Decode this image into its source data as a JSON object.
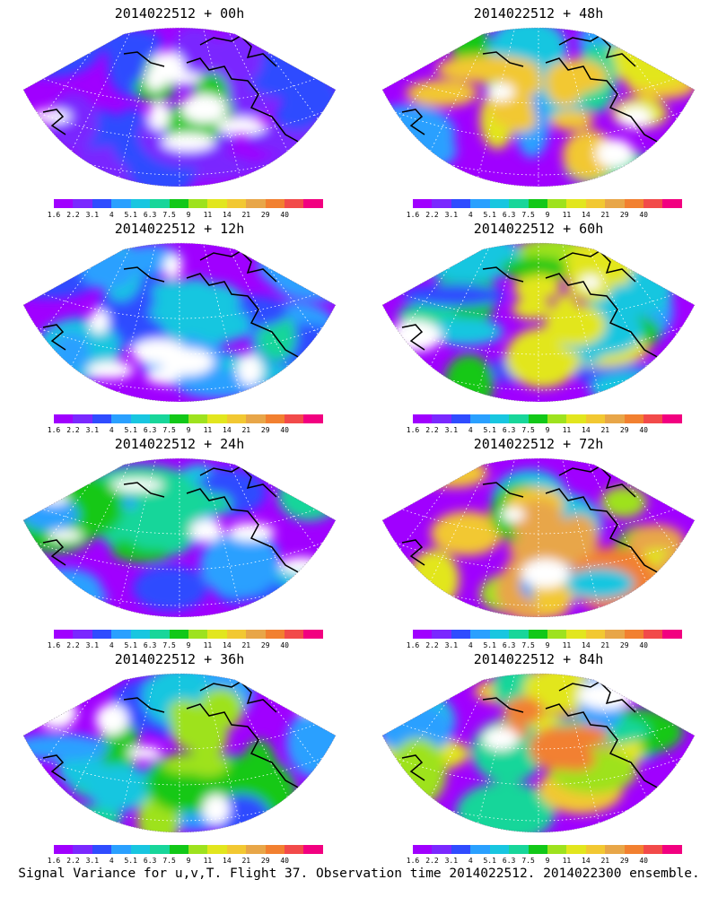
{
  "colorbar": {
    "ticks": [
      "1.6",
      "2.2",
      "3.1",
      "4",
      "5.1",
      "6.3",
      "7.5",
      "9",
      "11",
      "14",
      "21",
      "29",
      "40"
    ],
    "colors": [
      "#a000ff",
      "#7a28ff",
      "#2f4cff",
      "#2aa0ff",
      "#18c6e0",
      "#18d69a",
      "#12c818",
      "#9ee21e",
      "#e2e61e",
      "#f2c832",
      "#e8a648",
      "#f28030",
      "#f24a4a",
      "#f20080"
    ]
  },
  "panels": [
    {
      "title": "2014022512 + 00h",
      "intensity": 0.15,
      "hot": 0.9
    },
    {
      "title": "2014022512 + 48h",
      "intensity": 0.72,
      "hot": 0.2
    },
    {
      "title": "2014022512 + 12h",
      "intensity": 0.35,
      "hot": 0.1
    },
    {
      "title": "2014022512 + 60h",
      "intensity": 0.68,
      "hot": 0.15
    },
    {
      "title": "2014022512 + 24h",
      "intensity": 0.45,
      "hot": 0.1
    },
    {
      "title": "2014022512 + 72h",
      "intensity": 0.78,
      "hot": 0.2
    },
    {
      "title": "2014022512 + 36h",
      "intensity": 0.52,
      "hot": 0.25
    },
    {
      "title": "2014022512 + 84h",
      "intensity": 0.82,
      "hot": 0.45
    }
  ],
  "caption": "Signal Variance for u,v,T. Flight 37. Observation time 2014022512. 2014022300 ensemble."
}
